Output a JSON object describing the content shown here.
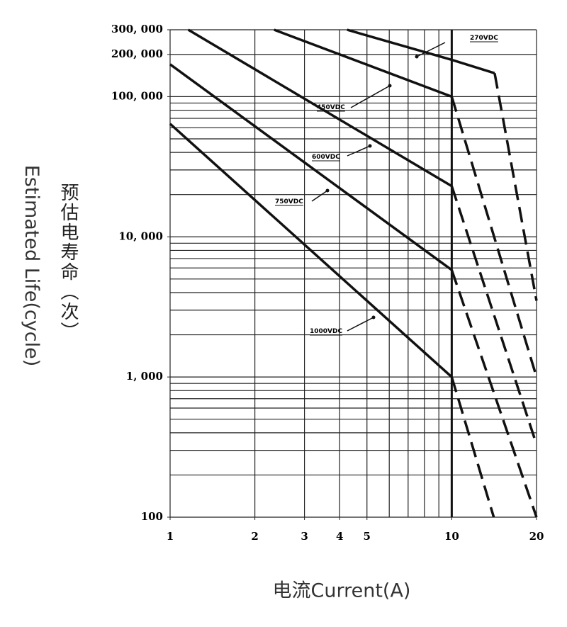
{
  "chart_data": {
    "type": "line",
    "y_label": "预估电寿命（次）",
    "y_label_en": "Estimated Life(cycle)",
    "x_label": "电流Current(A)",
    "log_x": true,
    "log_y": true,
    "grid": true,
    "color": "#111111",
    "xlim": [
      1,
      20
    ],
    "ylim": [
      100,
      300000
    ],
    "xticks": [
      1,
      2,
      3,
      4,
      5,
      10,
      20
    ],
    "yticks": [
      100,
      {
        "value": 1000,
        "label": "1, 000"
      },
      {
        "value": 10000,
        "label": "10, 000"
      },
      {
        "value": 100000,
        "label": "100, 000"
      },
      {
        "value": 200000,
        "label": "200, 000"
      },
      {
        "value": 300000,
        "label": "300, 000"
      }
    ],
    "x_grid": [
      1,
      2,
      3,
      4,
      5,
      6,
      7,
      8,
      9,
      10,
      20
    ],
    "y_grid": [
      100,
      200,
      300,
      400,
      500,
      600,
      700,
      800,
      900,
      1000,
      2000,
      3000,
      4000,
      5000,
      6000,
      7000,
      8000,
      9000,
      10000,
      20000,
      30000,
      40000,
      50000,
      60000,
      70000,
      80000,
      90000,
      100000,
      200000,
      300000
    ],
    "series": [
      {
        "name": "270VDC",
        "x": [
          4.25,
          10,
          14.2,
          20
        ],
        "values": [
          300000,
          183000,
          147000,
          3500
        ],
        "dashed_from_x": 14.2
      },
      {
        "name": "450VDC",
        "x": [
          2.34,
          10,
          20
        ],
        "values": [
          300000,
          100000,
          1000
        ],
        "dashed_from_x": 10
      },
      {
        "name": "600VDC",
        "x": [
          1.16,
          10,
          20
        ],
        "values": [
          300000,
          23000,
          330
        ],
        "dashed_from_x": 10
      },
      {
        "name": "750VDC",
        "x": [
          1,
          10,
          20
        ],
        "values": [
          170000,
          5800,
          100
        ],
        "dashed_from_x": 10
      },
      {
        "name": "1000VDC",
        "x": [
          1,
          10,
          14.1
        ],
        "values": [
          64000,
          1000,
          100
        ],
        "dashed_from_x": 10
      }
    ]
  }
}
